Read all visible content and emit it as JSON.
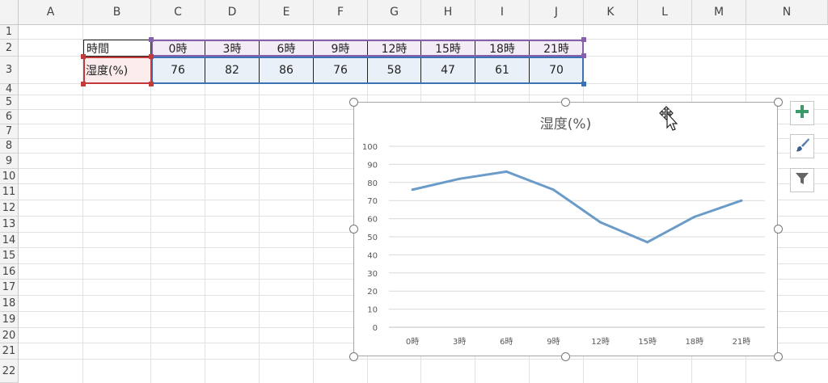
{
  "columns": [
    "A",
    "B",
    "C",
    "D",
    "E",
    "F",
    "G",
    "H",
    "I",
    "J",
    "K",
    "L",
    "M",
    "N"
  ],
  "rows": [
    "1",
    "2",
    "3",
    "4",
    "5",
    "6",
    "7",
    "8",
    "9",
    "10",
    "11",
    "12",
    "13",
    "14",
    "15",
    "16",
    "17",
    "18",
    "19",
    "20",
    "21",
    "22"
  ],
  "table": {
    "header_label": "時間",
    "value_label": "湿度(%)",
    "hours": [
      "0時",
      "3時",
      "6時",
      "9時",
      "12時",
      "15時",
      "18時",
      "21時"
    ],
    "values": [
      "76",
      "82",
      "86",
      "76",
      "58",
      "47",
      "61",
      "70"
    ]
  },
  "chart_data": {
    "type": "line",
    "title": "湿度(%)",
    "categories": [
      "0時",
      "3時",
      "6時",
      "9時",
      "12時",
      "15時",
      "18時",
      "21時"
    ],
    "series": [
      {
        "values": [
          76,
          82,
          86,
          76,
          58,
          47,
          61,
          70
        ]
      }
    ],
    "ylim": [
      0,
      100
    ],
    "yticks": [
      "100",
      "90",
      "80",
      "70",
      "60",
      "50",
      "40",
      "30",
      "20",
      "10",
      "0"
    ],
    "grid": true,
    "line_color": "#6b9bc8"
  },
  "chart_buttons": [
    "plus-icon",
    "brush-icon",
    "filter-icon"
  ],
  "colors": {
    "header_border": "#8660a8",
    "value_border": "#3b72b4",
    "label_border": "#c33a3a",
    "plus": "#3f9a6a"
  }
}
